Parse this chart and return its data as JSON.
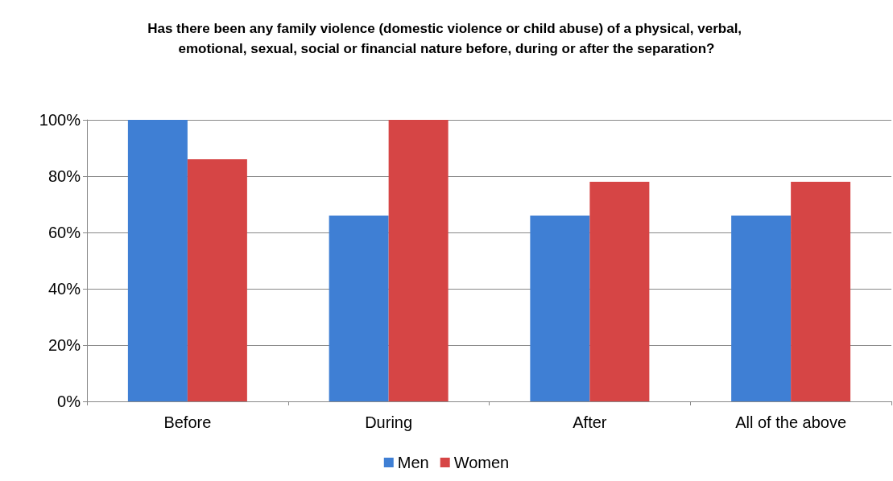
{
  "chart_data": {
    "type": "bar",
    "title": "Has there been any family violence (domestic violence or child abuse) of a physical, verbal, emotional, sexual, social or financial nature before, during or after the separation?",
    "categories": [
      "Before",
      "During",
      "After",
      "All of the above"
    ],
    "series": [
      {
        "name": "Men",
        "color": "#3f7fd4",
        "values": [
          100,
          66,
          66,
          66
        ]
      },
      {
        "name": "Women",
        "color": "#d64545",
        "values": [
          86,
          100,
          78,
          78
        ]
      }
    ],
    "ylim": [
      0,
      100
    ],
    "yticks": [
      {
        "value": 0,
        "label": "0%"
      },
      {
        "value": 20,
        "label": "20%"
      },
      {
        "value": 40,
        "label": "40%"
      },
      {
        "value": 60,
        "label": "60%"
      },
      {
        "value": 80,
        "label": "80%"
      },
      {
        "value": 100,
        "label": "100%"
      }
    ],
    "grid": "y",
    "legend": "bottom"
  }
}
